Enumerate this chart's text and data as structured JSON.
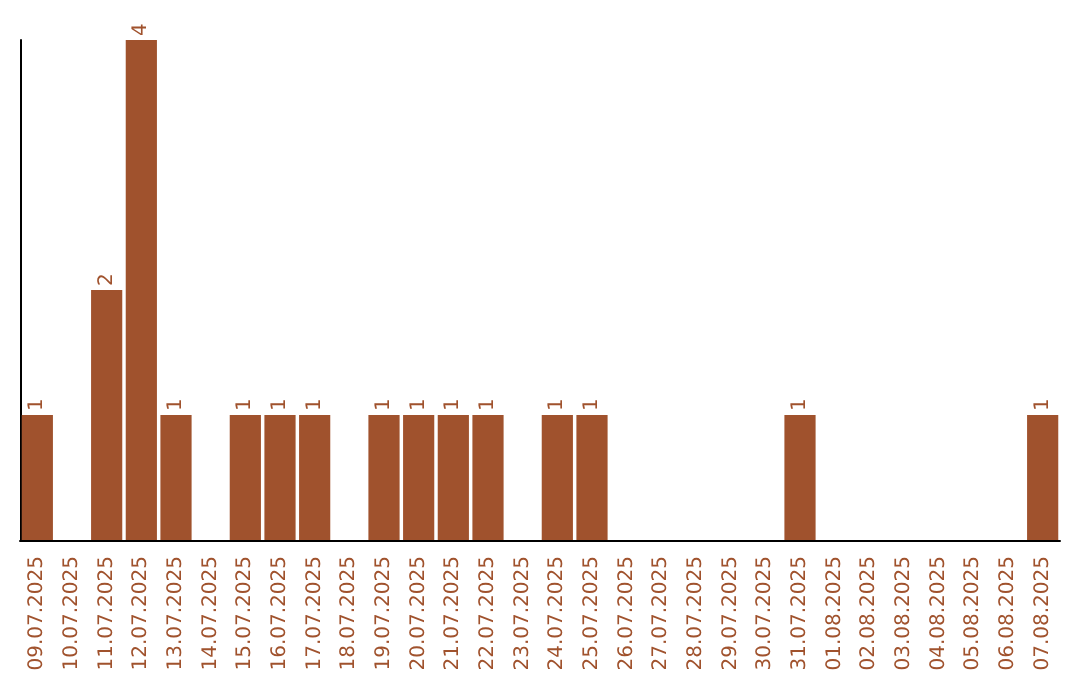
{
  "chart_data": {
    "type": "bar",
    "categories": [
      "09.07.2025",
      "10.07.2025",
      "11.07.2025",
      "12.07.2025",
      "13.07.2025",
      "14.07.2025",
      "15.07.2025",
      "16.07.2025",
      "17.07.2025",
      "18.07.2025",
      "19.07.2025",
      "20.07.2025",
      "21.07.2025",
      "22.07.2025",
      "23.07.2025",
      "24.07.2025",
      "25.07.2025",
      "26.07.2025",
      "27.07.2025",
      "28.07.2025",
      "29.07.2025",
      "30.07.2025",
      "31.07.2025",
      "01.08.2025",
      "02.08.2025",
      "03.08.2025",
      "04.08.2025",
      "05.08.2025",
      "06.08.2025",
      "07.08.2025"
    ],
    "values": [
      1,
      0,
      2,
      4,
      1,
      0,
      1,
      1,
      1,
      0,
      1,
      1,
      1,
      1,
      0,
      1,
      1,
      0,
      0,
      0,
      0,
      0,
      1,
      0,
      0,
      0,
      0,
      0,
      0,
      1
    ],
    "value_labels": [
      "1",
      null,
      "2",
      "4",
      "1",
      null,
      "1",
      "1",
      "1",
      null,
      "1",
      "1",
      "1",
      "1",
      null,
      "1",
      "1",
      null,
      null,
      null,
      null,
      null,
      "1",
      null,
      null,
      null,
      null,
      null,
      null,
      "1"
    ],
    "color": "#a0522d",
    "tick_labels": "x"
  }
}
